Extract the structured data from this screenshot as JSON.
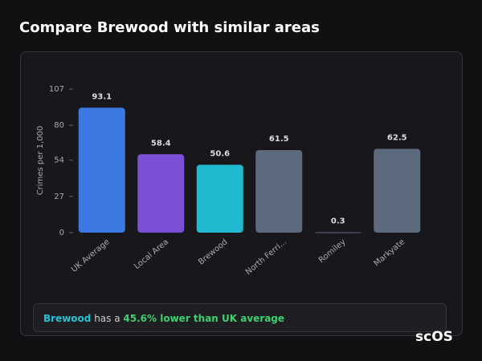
{
  "title": "Compare Brewood with similar areas",
  "chart_data": {
    "type": "bar",
    "y_label": "Crimes per 1,000",
    "categories": [
      "UK Average",
      "Local Area",
      "Brewood",
      "North Ferri...",
      "Romiley",
      "Markyate"
    ],
    "values": [
      93.1,
      58.4,
      50.6,
      61.5,
      0.3,
      62.5
    ],
    "colors": [
      "#3b78e0",
      "#7b4fd6",
      "#20b9d0",
      "#5d6a7e",
      "#5d6a7e",
      "#5d6a7e"
    ],
    "ylim": [
      0,
      107
    ],
    "yticks": [
      0,
      27,
      54,
      80,
      107
    ]
  },
  "summary": {
    "area": "Brewood",
    "text": "has a",
    "highlight": "45.6% lower than UK average"
  },
  "logo": "scOS"
}
